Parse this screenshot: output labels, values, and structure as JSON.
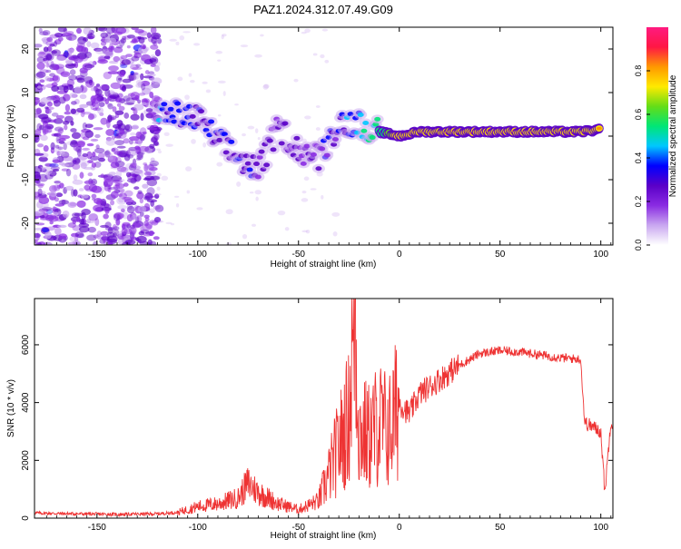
{
  "title": "PAZ1.2024.312.07.49.G09",
  "chart_data": [
    {
      "type": "heatmap",
      "xlabel": "Height of straight line (km)",
      "ylabel": "Frequency (Hz)",
      "xlim": [
        -181,
        106
      ],
      "ylim": [
        -25,
        25
      ],
      "x_ticks": [
        -150,
        -100,
        -50,
        0,
        50,
        100
      ],
      "y_ticks": [
        -20,
        -10,
        0,
        10,
        20
      ],
      "colorbar": {
        "label": "Normalized spectral amplitude",
        "range": [
          0,
          1
        ],
        "ticks": [
          "0.0",
          "0.2",
          "0.4",
          "0.6",
          "0.8"
        ],
        "colors": [
          "#ffffff",
          "#c9a7f0",
          "#8a2be2",
          "#5a00c8",
          "#0000ff",
          "#00c8ff",
          "#00e676",
          "#64dd17",
          "#ffea00",
          "#ff9800",
          "#ff1744",
          "#ff1a80"
        ]
      },
      "ridge": [
        {
          "x": -120,
          "y": 5,
          "amp": 0.35
        },
        {
          "x": -110,
          "y": 5,
          "amp": 0.35
        },
        {
          "x": -100,
          "y": 4,
          "amp": 0.3
        },
        {
          "x": -90,
          "y": -1,
          "amp": 0.3
        },
        {
          "x": -80,
          "y": -5,
          "amp": 0.3
        },
        {
          "x": -70,
          "y": -8,
          "amp": 0.28
        },
        {
          "x": -60,
          "y": 2,
          "amp": 0.25
        },
        {
          "x": -50,
          "y": -3,
          "amp": 0.25
        },
        {
          "x": -40,
          "y": -5,
          "amp": 0.25
        },
        {
          "x": -30,
          "y": 3,
          "amp": 0.3
        },
        {
          "x": -20,
          "y": 3,
          "amp": 0.45
        },
        {
          "x": -10,
          "y": 1,
          "amp": 0.5
        },
        {
          "x": 0,
          "y": 0,
          "amp": 0.75
        },
        {
          "x": 10,
          "y": 1,
          "amp": 0.8
        },
        {
          "x": 20,
          "y": 1,
          "amp": 0.85
        },
        {
          "x": 30,
          "y": 1,
          "amp": 0.9
        },
        {
          "x": 50,
          "y": 1,
          "amp": 0.95
        },
        {
          "x": 70,
          "y": 1,
          "amp": 0.95
        },
        {
          "x": 90,
          "y": 1,
          "amp": 0.85
        },
        {
          "x": 100,
          "y": 1.5,
          "amp": 0.8
        }
      ]
    },
    {
      "type": "line",
      "xlabel": "Height of straight line (km)",
      "ylabel": "SNR (10 * v/v)",
      "xlim": [
        -181,
        106
      ],
      "ylim": [
        0,
        7600
      ],
      "x_ticks": [
        -150,
        -100,
        -50,
        0,
        50,
        100
      ],
      "y_ticks": [
        0,
        2000,
        4000,
        6000
      ],
      "color": "#ee3333",
      "series": [
        {
          "x": [
            -181,
            -170,
            -160,
            -150,
            -140,
            -130,
            -120,
            -110,
            -100,
            -90,
            -80,
            -75,
            -70,
            -60,
            -50,
            -40,
            -35,
            -30,
            -25,
            -22,
            -20,
            -15,
            -10,
            -5,
            0,
            5,
            10,
            20,
            30,
            40,
            50,
            60,
            70,
            80,
            90,
            92,
            95,
            100,
            102,
            105,
            106
          ],
          "y": [
            180,
            160,
            150,
            140,
            130,
            140,
            150,
            200,
            400,
            500,
            700,
            1200,
            900,
            500,
            300,
            600,
            1500,
            2500,
            3500,
            7500,
            3000,
            2800,
            3300,
            3000,
            4000,
            3600,
            4300,
            4800,
            5300,
            5700,
            5800,
            5750,
            5650,
            5550,
            5500,
            3300,
            3200,
            3000,
            900,
            3400,
            3200
          ]
        }
      ]
    }
  ]
}
